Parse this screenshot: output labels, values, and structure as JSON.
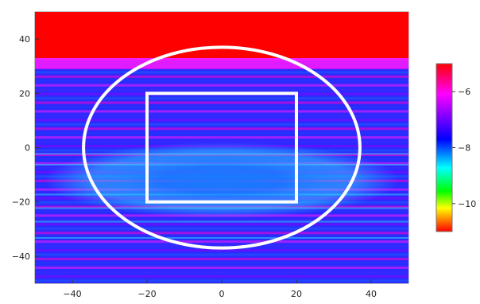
{
  "chart_data": {
    "type": "heatmap",
    "title": "",
    "xlabel": "",
    "ylabel": "",
    "xlim": [
      -50,
      50
    ],
    "ylim": [
      -50,
      50
    ],
    "x_ticks": [
      -40,
      -20,
      0,
      20,
      40
    ],
    "y_ticks": [
      40,
      20,
      0,
      -20,
      -40
    ],
    "x_tick_labels": [
      "−40",
      "−20",
      "0",
      "20",
      "40"
    ],
    "y_tick_labels": [
      "40",
      "20",
      "0",
      "−20",
      "−40"
    ],
    "colorbar": {
      "range": [
        -11,
        -5
      ],
      "ticks": [
        -6,
        -8,
        -10
      ],
      "tick_labels": [
        "−6",
        "−8",
        "−10"
      ],
      "colors": [
        "#ff0000",
        "#ff00ff",
        "#0000ff",
        "#00ffff",
        "#00ff00",
        "#ffff00",
        "#ff0000"
      ]
    },
    "overlays": [
      {
        "shape": "ellipse",
        "center": [
          0,
          0
        ],
        "rx": 37,
        "ry": 37,
        "color": "#ffffff"
      },
      {
        "shape": "rectangle",
        "x": [
          -20,
          20
        ],
        "y": [
          -20,
          20
        ],
        "color": "#ffffff"
      }
    ],
    "field_features": {
      "upper_region_y_above": 33,
      "upper_region_color": "#ff0000",
      "low_band_center": [
        0,
        -12
      ]
    }
  }
}
